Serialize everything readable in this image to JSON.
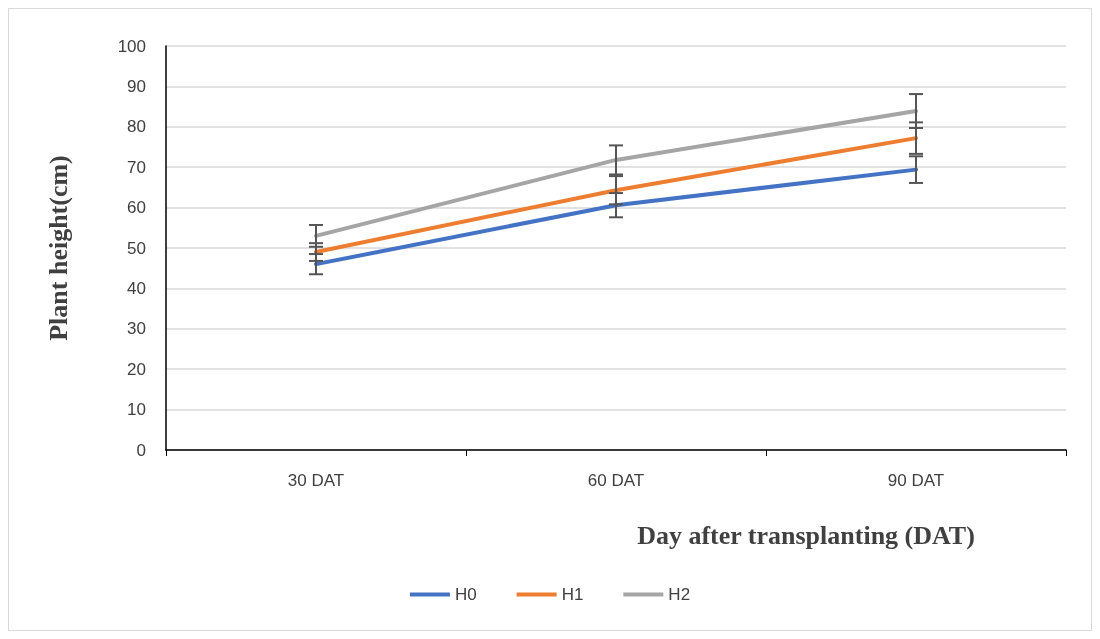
{
  "chart_data": {
    "type": "line",
    "xlabel": "Day after transplanting (DAT)",
    "ylabel": "Plant height(cm)",
    "categories": [
      "30 DAT",
      "60 DAT",
      "90 DAT"
    ],
    "series": [
      {
        "name": "H0",
        "color": "#4472c4",
        "values": [
          46,
          60.6,
          69.4
        ],
        "errors": [
          2.5,
          3,
          3.3
        ]
      },
      {
        "name": "H1",
        "color": "#ed7d31",
        "values": [
          49,
          64.3,
          77.2
        ],
        "errors": [
          2.2,
          3.5,
          3.9
        ]
      },
      {
        "name": "H2",
        "color": "#a5a5a5",
        "values": [
          53,
          71.8,
          83.9
        ],
        "errors": [
          2.7,
          3.6,
          4.2
        ]
      }
    ],
    "ylim": [
      0,
      100
    ],
    "yticks": [
      0,
      10,
      20,
      30,
      40,
      50,
      60,
      70,
      80,
      90,
      100
    ],
    "grid": "y",
    "legend": "bottom",
    "marker": "none",
    "line_style": "solid"
  }
}
